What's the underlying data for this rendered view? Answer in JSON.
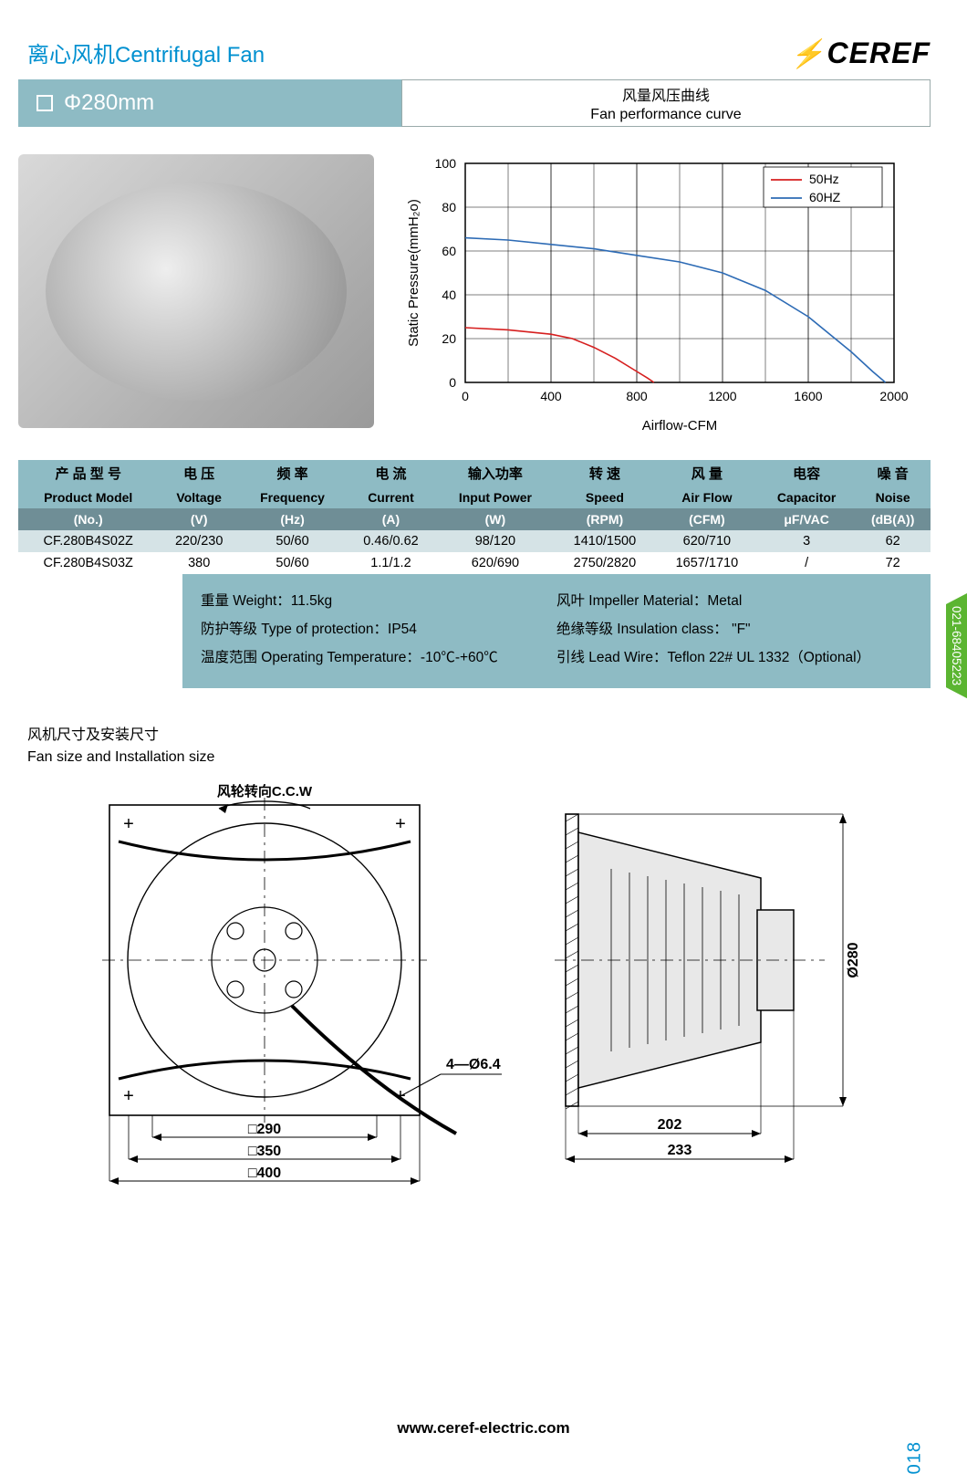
{
  "header": {
    "title": "离心风机Centrifugal Fan",
    "brand": "CEREF"
  },
  "bar": {
    "size": "Φ280mm",
    "curve_cn": "风量风压曲线",
    "curve_en": "Fan performance curve"
  },
  "chart": {
    "type": "line",
    "x_label": "Airflow-CFM",
    "y_label": "Static Pressure(mmH₂o)",
    "xlim": [
      0,
      2000
    ],
    "ylim": [
      0,
      100
    ],
    "x_ticks": [
      0,
      400,
      800,
      1200,
      1600,
      2000
    ],
    "y_ticks": [
      0,
      20,
      40,
      60,
      80,
      100
    ],
    "grid_color": "#000000",
    "background": "#ffffff",
    "axis_fontsize": 14,
    "series": [
      {
        "name": "50Hz",
        "color": "#d61f1f",
        "width": 1.6,
        "points": [
          [
            0,
            25
          ],
          [
            200,
            24
          ],
          [
            400,
            22
          ],
          [
            500,
            20
          ],
          [
            600,
            16
          ],
          [
            700,
            11
          ],
          [
            800,
            5
          ],
          [
            850,
            2
          ],
          [
            880,
            0
          ]
        ]
      },
      {
        "name": "60HZ",
        "color": "#2d6bb5",
        "width": 1.6,
        "points": [
          [
            0,
            66
          ],
          [
            200,
            65
          ],
          [
            400,
            63
          ],
          [
            600,
            61
          ],
          [
            800,
            58
          ],
          [
            1000,
            55
          ],
          [
            1200,
            50
          ],
          [
            1400,
            42
          ],
          [
            1600,
            30
          ],
          [
            1800,
            14
          ],
          [
            1900,
            5
          ],
          [
            1960,
            0
          ]
        ]
      }
    ],
    "legend": {
      "labels": [
        "50Hz",
        "60HZ"
      ],
      "colors": [
        "#d61f1f",
        "#2d6bb5"
      ]
    }
  },
  "table": {
    "header_cn": [
      "产 品 型 号",
      "电 压",
      "频 率",
      "电 流",
      "输入功率",
      "转 速",
      "风 量",
      "电容",
      "噪 音"
    ],
    "header_en": [
      "Product Model",
      "Voltage",
      "Frequency",
      "Current",
      "Input Power",
      "Speed",
      "Air Flow",
      "Capacitor",
      "Noise"
    ],
    "units": [
      "(No.)",
      "(V)",
      "(Hz)",
      "(A)",
      "(W)",
      "(RPM)",
      "(CFM)",
      "μF/VAC",
      "(dB(A))"
    ],
    "rows": [
      [
        "CF.280B4S02Z",
        "220/230",
        "50/60",
        "0.46/0.62",
        "98/120",
        "1410/1500",
        "620/710",
        "3",
        "62"
      ],
      [
        "CF.280B4S03Z",
        "380",
        "50/60",
        "1.1/1.2",
        "620/690",
        "2750/2820",
        "1657/1710",
        "/",
        "72"
      ]
    ]
  },
  "extras": {
    "weight": "重量 Weight：11.5kg",
    "impeller": "风叶 Impeller Material：Metal",
    "protection": "防护等级 Type of protection：IP54",
    "insulation": "绝缘等级 Insulation class： \"F\"",
    "temperature": "温度范围 Operating Temperature：-10℃-+60℃",
    "leadwire": "引线 Lead Wire：Teflon 22# UL 1332（Optional）"
  },
  "dims": {
    "title_cn": "风机尺寸及安装尺寸",
    "title_en": "Fan size and Installation size",
    "rotation_label": "风轮转向C.C.W",
    "front": {
      "hole_label": "4—Ø6.4",
      "sq_dims": [
        "□290",
        "□350",
        "□400"
      ]
    },
    "side": {
      "depth_inner": "202",
      "depth_outer": "233",
      "diameter": "Ø280"
    }
  },
  "footer": {
    "url": "www.ceref-electric.com",
    "page": "018",
    "phone": "021-68405223"
  }
}
